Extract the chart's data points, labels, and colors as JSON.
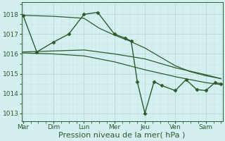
{
  "background_color": "#d4efef",
  "grid_color_major": "#b8d8d8",
  "grid_color_minor": "#c8e4e4",
  "line_color": "#2d5a2d",
  "marker_color": "#2d5a2d",
  "xlabel": "Pression niveau de la mer( hPa )",
  "xlabel_color": "#2d5a2d",
  "xlabel_fontsize": 8,
  "yticks": [
    1013,
    1014,
    1015,
    1016,
    1017,
    1018
  ],
  "ylim": [
    1012.6,
    1018.6
  ],
  "xlim": [
    -0.05,
    6.55
  ],
  "xtick_labels": [
    "Mar",
    "Dim",
    "Lun",
    "Mer",
    "Jeu",
    "Ven",
    "Sam"
  ],
  "xtick_positions": [
    0,
    1,
    2,
    3,
    4,
    5,
    6
  ],
  "series": [
    {
      "x": [
        0.0,
        0.45,
        1.0,
        1.5,
        2.0,
        2.45,
        3.0,
        3.35,
        3.55,
        3.75,
        4.0,
        4.3,
        4.55,
        5.0,
        5.35,
        5.7,
        6.0,
        6.3,
        6.5
      ],
      "y": [
        1017.95,
        1016.1,
        1016.6,
        1017.0,
        1018.0,
        1018.1,
        1017.0,
        1016.8,
        1016.65,
        1014.6,
        1013.0,
        1014.6,
        1014.4,
        1014.15,
        1014.7,
        1014.2,
        1014.15,
        1014.55,
        1014.5
      ],
      "marker": "D",
      "markersize": 2.5,
      "linewidth": 1.0,
      "zorder": 4
    },
    {
      "x": [
        0.0,
        1.0,
        2.0,
        2.5,
        3.0,
        3.5,
        4.0,
        4.5,
        5.0,
        5.5,
        6.0,
        6.5
      ],
      "y": [
        1017.95,
        1017.9,
        1017.8,
        1017.3,
        1016.95,
        1016.65,
        1016.3,
        1015.85,
        1015.4,
        1015.1,
        1014.9,
        1014.75
      ],
      "marker": null,
      "markersize": 0,
      "linewidth": 0.9,
      "zorder": 3
    },
    {
      "x": [
        0.0,
        1.0,
        2.0,
        3.0,
        4.0,
        5.0,
        6.0,
        6.5
      ],
      "y": [
        1016.1,
        1016.15,
        1016.2,
        1016.0,
        1015.75,
        1015.3,
        1014.95,
        1014.75
      ],
      "marker": null,
      "markersize": 0,
      "linewidth": 0.9,
      "zorder": 3
    },
    {
      "x": [
        0.0,
        1.0,
        2.0,
        3.0,
        4.0,
        5.0,
        6.0,
        6.5
      ],
      "y": [
        1016.05,
        1016.0,
        1015.9,
        1015.6,
        1015.2,
        1014.85,
        1014.55,
        1014.45
      ],
      "marker": null,
      "markersize": 0,
      "linewidth": 0.9,
      "zorder": 3
    }
  ]
}
